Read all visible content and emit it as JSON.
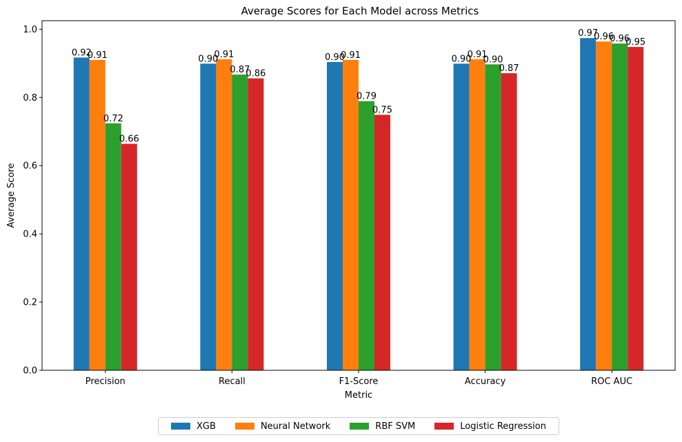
{
  "chart_data": {
    "type": "bar",
    "title": "Average Scores for Each Model across Metrics",
    "xlabel": "Metric",
    "ylabel": "Average Score",
    "ylim": [
      0,
      1.025
    ],
    "yticks": [
      0.0,
      0.2,
      0.4,
      0.6,
      0.8,
      1.0
    ],
    "ytick_labels": [
      "0.0",
      "0.2",
      "0.4",
      "0.6",
      "0.8",
      "1.0"
    ],
    "grid": false,
    "legend_position": "bottom-center",
    "categories": [
      "Precision",
      "Recall",
      "F1-Score",
      "Accuracy",
      "ROC AUC"
    ],
    "series": [
      {
        "name": "XGB",
        "color": "#1f77b4",
        "values": [
          0.917,
          0.899,
          0.904,
          0.899,
          0.974
        ],
        "labels": [
          "0.92",
          "0.90",
          "0.90",
          "0.90",
          "0.97"
        ]
      },
      {
        "name": "Neural Network",
        "color": "#ff7f0e",
        "values": [
          0.91,
          0.912,
          0.91,
          0.912,
          0.964
        ],
        "labels": [
          "0.91",
          "0.91",
          "0.91",
          "0.91",
          "0.96"
        ]
      },
      {
        "name": "RBF SVM",
        "color": "#2ca02c",
        "values": [
          0.724,
          0.867,
          0.789,
          0.897,
          0.958
        ],
        "labels": [
          "0.72",
          "0.87",
          "0.79",
          "0.90",
          "0.96"
        ]
      },
      {
        "name": "Logistic Regression",
        "color": "#d62728",
        "values": [
          0.664,
          0.856,
          0.749,
          0.871,
          0.948
        ],
        "labels": [
          "0.66",
          "0.86",
          "0.75",
          "0.87",
          "0.95"
        ]
      }
    ]
  }
}
